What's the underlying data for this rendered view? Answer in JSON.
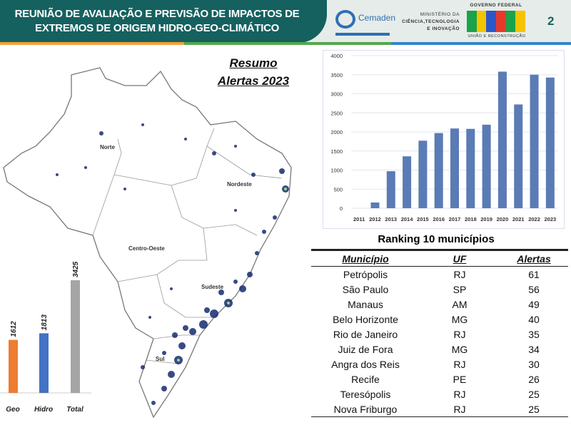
{
  "header": {
    "title_line1": "REUNIÃO DE AVALIAÇÃO E PREVISÃO DE IMPACTOS DE",
    "title_line2": "EXTREMOS DE ORIGEM HIDRO-GEO-CLIMÁTICO",
    "page_number": "2",
    "logos": {
      "cemaden": "Cemaden",
      "ministry_line1": "MINISTÉRIO DA",
      "ministry_line2": "CIÊNCIA,TECNOLOGIA",
      "ministry_line3": "E INOVAÇÃO",
      "gov_top": "GOVERNO FEDERAL",
      "gov_word": "BRASIL",
      "gov_bottom": "UNIÃO E RECONSTRUÇÃO"
    }
  },
  "map": {
    "title_line1": "Resumo",
    "title_line2": "Alertas 2023",
    "regions": [
      "Norte",
      "Nordeste",
      "Centro-Oeste",
      "Sudeste",
      "Sul"
    ]
  },
  "chart_data": [
    {
      "type": "bar",
      "title": "",
      "categories": [
        "2011",
        "2012",
        "2013",
        "2014",
        "2015",
        "2016",
        "2017",
        "2018",
        "2019",
        "2020",
        "2021",
        "2022",
        "2023"
      ],
      "values": [
        0,
        150,
        970,
        1360,
        1770,
        1970,
        2090,
        2080,
        2190,
        3580,
        2720,
        3500,
        3425
      ],
      "ylim": [
        0,
        4000
      ],
      "yticks": [
        0,
        500,
        1000,
        1500,
        2000,
        2500,
        3000,
        3500,
        4000
      ],
      "grid": true,
      "color": "#5a7bb5"
    },
    {
      "type": "bar",
      "categories": [
        "Geo",
        "Hidro",
        "Total"
      ],
      "values": [
        1612,
        1813,
        3425
      ],
      "colors": [
        "#ed7d31",
        "#4472c4",
        "#a5a5a5"
      ]
    }
  ],
  "ranking": {
    "title": "Ranking 10 municípios",
    "headers": [
      "Município",
      "UF",
      "Alertas"
    ],
    "rows": [
      [
        "Petrópolis",
        "RJ",
        "61"
      ],
      [
        "São Paulo",
        "SP",
        "56"
      ],
      [
        "Manaus",
        "AM",
        "49"
      ],
      [
        "Belo Horizonte",
        "MG",
        "40"
      ],
      [
        "Rio de Janeiro",
        "RJ",
        "35"
      ],
      [
        "Juiz de Fora",
        "MG",
        "34"
      ],
      [
        "Angra dos Reis",
        "RJ",
        "30"
      ],
      [
        "Recife",
        "PE",
        "26"
      ],
      [
        "Teresópolis",
        "RJ",
        "25"
      ],
      [
        "Nova Friburgo",
        "RJ",
        "25"
      ]
    ]
  }
}
